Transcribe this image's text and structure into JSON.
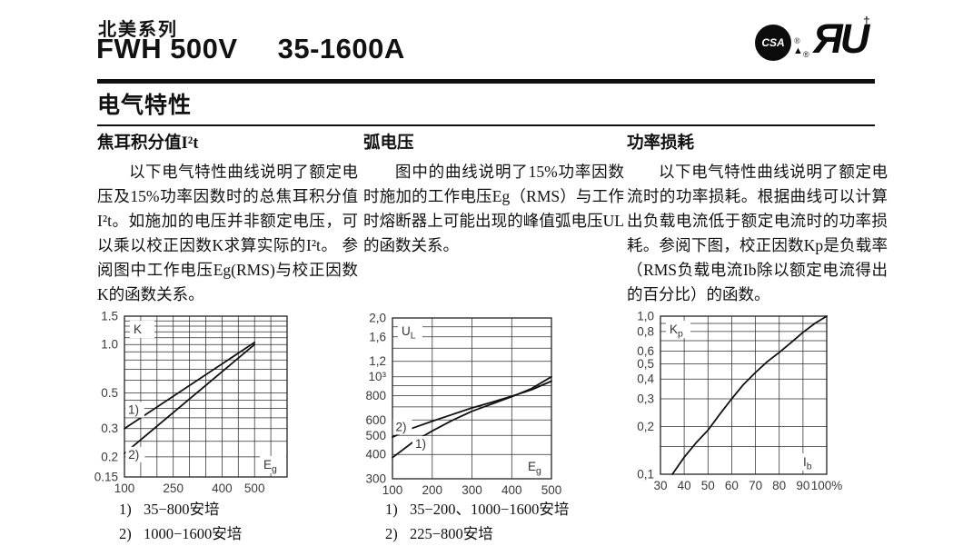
{
  "header": {
    "series_label": "北美系列",
    "model": "FWH 500V",
    "range": "35-1600A",
    "csa_text": "CSA",
    "ul_mark": "ЯU",
    "ul_dagger": "†",
    "registered": "®",
    "triangle": "▲"
  },
  "section": {
    "title": "电气特性"
  },
  "columns": [
    {
      "heading": "焦耳积分值I²t",
      "body": "以下电气特性曲线说明了额定电压及15%功率因数时的总焦耳积分值I²t。如施加的电压并非额定电压，可以乘以校正因数K求算实际的I²t。 参阅图中工作电压Eg(RMS)与校正因数K的函数关系。"
    },
    {
      "heading": "弧电压",
      "body": "图中的曲线说明了15%功率因数时施加的工作电压Eg（RMS）与工作时熔断器上可能出现的峰值弧电压UL的函数关系。"
    },
    {
      "heading": "功率损耗",
      "body": "以下电气特性曲线说明了额定电流时的功率损耗。根据曲线可以计算出负载电流低于额定电流时的功率损耗。参阅下图，校正因数Kp是负载率（RMS负载电流Ib除以额定电流得出的百分比）的函数。"
    }
  ],
  "chart_data": [
    {
      "name": "joule-integral-correction-chart",
      "type": "line",
      "y_axis_label": {
        "main": "K",
        "sub": ""
      },
      "x_axis_label": {
        "main": "E",
        "sub": "g"
      },
      "x_scale": "linear",
      "x_range": [
        100,
        600
      ],
      "x_gridlines": [
        100,
        150,
        200,
        250,
        300,
        350,
        400,
        450,
        500,
        550,
        600
      ],
      "x_ticks": [
        {
          "label": "100",
          "value": 100
        },
        {
          "label": "250",
          "value": 250
        },
        {
          "label": "400",
          "value": 400
        },
        {
          "label": "500",
          "value": 500
        }
      ],
      "y_scale": "log",
      "y_range": [
        0.15,
        1.5
      ],
      "y_gridlines": [
        0.15,
        0.2,
        0.25,
        0.3,
        0.35,
        0.4,
        0.45,
        0.5,
        0.6,
        0.7,
        0.8,
        0.9,
        1.0,
        1.1,
        1.2,
        1.3,
        1.4,
        1.5
      ],
      "y_ticks": [
        {
          "label": "1.5",
          "value": 1.5
        },
        {
          "label": "1.0",
          "value": 1.0
        },
        {
          "label": "0.5",
          "value": 0.5
        },
        {
          "label": "0.3",
          "value": 0.3
        },
        {
          "label": "0.2",
          "value": 0.2
        },
        {
          "label": "0.15",
          "value": 0.15
        }
      ],
      "series": [
        {
          "label": "1)",
          "label_at": [
            111,
            0.37
          ],
          "points": [
            [
              100,
              0.3
            ],
            [
              500,
              1.03
            ]
          ]
        },
        {
          "label": "2)",
          "label_at": [
            112,
            0.195
          ],
          "points": [
            [
              100,
              0.21
            ],
            [
              500,
              1.0
            ]
          ]
        }
      ],
      "legend": [
        {
          "marker": "1)",
          "text": "35−800安培"
        },
        {
          "marker": "2)",
          "text": "1000−1600安培"
        }
      ]
    },
    {
      "name": "arc-voltage-chart",
      "type": "line",
      "y_axis_label": {
        "main": "U",
        "sub": "L"
      },
      "x_axis_label": {
        "main": "E",
        "sub": "g"
      },
      "x_scale": "linear",
      "x_range": [
        100,
        500
      ],
      "x_gridlines": [
        100,
        200,
        300,
        400,
        500
      ],
      "x_ticks": [
        {
          "label": "100",
          "value": 100
        },
        {
          "label": "200",
          "value": 200
        },
        {
          "label": "300",
          "value": 300
        },
        {
          "label": "400",
          "value": 400
        },
        {
          "label": "500",
          "value": 500
        }
      ],
      "y_scale": "log",
      "y_range": [
        300,
        2000
      ],
      "y_gridlines": [
        300,
        400,
        500,
        600,
        700,
        800,
        900,
        1000,
        1200,
        1400,
        1600,
        1800,
        2000
      ],
      "y_ticks": [
        {
          "label": "2,0",
          "value": 2000
        },
        {
          "label": "1,6",
          "value": 1600
        },
        {
          "label": "1,2",
          "value": 1200
        },
        {
          "label": "10³",
          "value": 1000
        },
        {
          "label": "800",
          "value": 800
        },
        {
          "label": "600",
          "value": 600
        },
        {
          "label": "500",
          "value": 500
        },
        {
          "label": "400",
          "value": 400
        },
        {
          "label": "300",
          "value": 300
        }
      ],
      "series": [
        {
          "label": "1)",
          "label_at": [
            157,
            432
          ],
          "points": [
            [
              100,
              385
            ],
            [
              150,
              460
            ],
            [
              200,
              528
            ],
            [
              250,
              597
            ],
            [
              300,
              665
            ],
            [
              350,
              725
            ],
            [
              400,
              790
            ],
            [
              450,
              870
            ],
            [
              500,
              1000
            ]
          ]
        },
        {
          "label": "2)",
          "label_at": [
            108,
            527
          ],
          "points": [
            [
              100,
              490
            ],
            [
              150,
              545
            ],
            [
              200,
              592
            ],
            [
              250,
              640
            ],
            [
              300,
              692
            ],
            [
              350,
              740
            ],
            [
              400,
              795
            ],
            [
              450,
              858
            ],
            [
              500,
              950
            ]
          ]
        }
      ],
      "legend": [
        {
          "marker": "1)",
          "text": "35−200、1000−1600安培"
        },
        {
          "marker": "2)",
          "text": "225−800安培"
        }
      ]
    },
    {
      "name": "power-loss-chart",
      "type": "line",
      "y_axis_label": {
        "main": "K",
        "sub": "p"
      },
      "x_axis_label": {
        "main": "I",
        "sub": "b"
      },
      "x_scale": "linear",
      "x_range": [
        30,
        100
      ],
      "x_gridlines": [
        30,
        40,
        50,
        60,
        70,
        80,
        90,
        100
      ],
      "x_ticks": [
        {
          "label": "30",
          "value": 30
        },
        {
          "label": "40",
          "value": 40
        },
        {
          "label": "50",
          "value": 50
        },
        {
          "label": "60",
          "value": 60
        },
        {
          "label": "70",
          "value": 70
        },
        {
          "label": "80",
          "value": 80
        },
        {
          "label": "90",
          "value": 90
        },
        {
          "label": "100%",
          "value": 100
        }
      ],
      "y_scale": "log",
      "y_range": [
        0.1,
        1.0
      ],
      "y_gridlines": [
        0.1,
        0.15,
        0.2,
        0.3,
        0.4,
        0.5,
        0.6,
        0.7,
        0.8,
        0.9,
        1.0
      ],
      "y_ticks": [
        {
          "label": "1,0",
          "value": 1.0
        },
        {
          "label": "0,8",
          "value": 0.8
        },
        {
          "label": "0,6",
          "value": 0.6
        },
        {
          "label": "0,5",
          "value": 0.5
        },
        {
          "label": "0,4",
          "value": 0.4
        },
        {
          "label": "0,3",
          "value": 0.3
        },
        {
          "label": "0,2",
          "value": 0.2
        },
        {
          "label": "0,1",
          "value": 0.1
        }
      ],
      "series": [
        {
          "label": "",
          "label_at": null,
          "points": [
            [
              35,
              0.1
            ],
            [
              40,
              0.128
            ],
            [
              45,
              0.158
            ],
            [
              50,
              0.19
            ],
            [
              55,
              0.24
            ],
            [
              60,
              0.3
            ],
            [
              65,
              0.37
            ],
            [
              70,
              0.44
            ],
            [
              75,
              0.515
            ],
            [
              80,
              0.59
            ],
            [
              85,
              0.68
            ],
            [
              90,
              0.79
            ],
            [
              95,
              0.9
            ],
            [
              100,
              1.0
            ]
          ]
        }
      ],
      "legend": []
    }
  ]
}
